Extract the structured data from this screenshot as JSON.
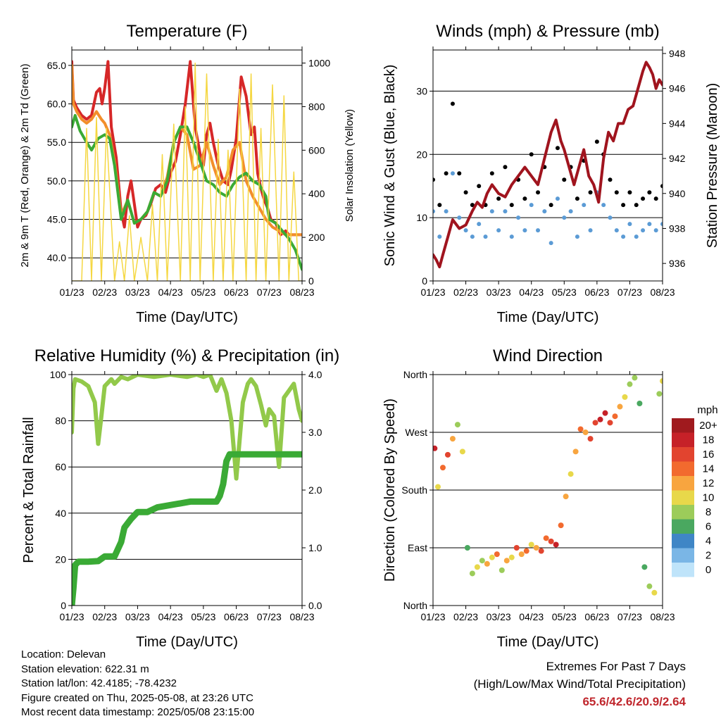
{
  "chart_data": [
    {
      "type": "line",
      "title": "Temperature (F)",
      "xlabel": "Time (Day/UTC)",
      "ylabel": "2m & 9m T (Red, Orange) & 2m Td (Green)",
      "ylabel_right": "Solar Insolation (Yellow)",
      "x_ticks": [
        "01/23",
        "02/23",
        "03/23",
        "04/23",
        "05/23",
        "06/23",
        "07/23",
        "08/23"
      ],
      "xlim": [
        0,
        7
      ],
      "ylim": [
        37,
        67
      ],
      "y_ticks": [
        "40.0",
        "45.0",
        "50.0",
        "55.0",
        "60.0",
        "65.0"
      ],
      "y2lim": [
        0,
        1060
      ],
      "y2_ticks": [
        "0",
        "200",
        "400",
        "600",
        "800",
        "1000"
      ],
      "grid": true,
      "series": [
        {
          "color": "#d62728",
          "x": [
            0,
            0.05,
            0.15,
            0.3,
            0.45,
            0.6,
            0.75,
            0.85,
            0.92,
            1.0,
            1.1,
            1.2,
            1.35,
            1.5,
            1.6,
            1.7,
            1.8,
            1.9,
            2.0,
            2.1,
            2.25,
            2.4,
            2.55,
            2.7,
            2.85,
            3.0,
            3.15,
            3.3,
            3.45,
            3.6,
            3.75,
            3.9,
            4.0,
            4.1,
            4.2,
            4.3,
            4.45,
            4.6,
            4.75,
            4.85,
            5.0,
            5.15,
            5.3,
            5.45,
            5.55,
            5.65,
            5.75,
            5.85,
            5.95,
            6.05,
            6.2,
            6.35,
            6.5,
            6.6,
            6.7,
            6.8,
            6.9,
            7.0
          ],
          "values": [
            65.5,
            60.5,
            59.5,
            58.5,
            58.0,
            58.5,
            61.5,
            62.0,
            60.0,
            62.0,
            65.5,
            57.0,
            53.0,
            46.0,
            44.0,
            48.0,
            50.0,
            47.0,
            44.0,
            45.0,
            45.5,
            47.0,
            49.0,
            49.5,
            48.5,
            51.0,
            52.5,
            56.0,
            60.0,
            65.5,
            57.0,
            53.5,
            52.0,
            56.0,
            57.5,
            55.0,
            52.0,
            50.0,
            49.5,
            51.5,
            55.5,
            63.5,
            61.0,
            56.0,
            57.0,
            51.0,
            49.0,
            47.5,
            46.5,
            45.0,
            44.5,
            43.0,
            43.5,
            43.0,
            43.0,
            43.0,
            43.0,
            43.0
          ]
        },
        {
          "color": "#f28e2b",
          "x": [
            0,
            0.05,
            0.15,
            0.3,
            0.45,
            0.6,
            0.75,
            0.9,
            1.0,
            1.15,
            1.3,
            1.5,
            1.7,
            1.9,
            2.1,
            2.3,
            2.5,
            2.7,
            2.9,
            3.1,
            3.3,
            3.5,
            3.7,
            3.9,
            4.1,
            4.3,
            4.5,
            4.7,
            4.9,
            5.1,
            5.3,
            5.5,
            5.7,
            5.9,
            6.1,
            6.3,
            6.5,
            6.7,
            7.0
          ],
          "values": [
            65.0,
            60.0,
            59.0,
            58.0,
            57.5,
            58.0,
            59.0,
            58.0,
            57.5,
            56.0,
            52.5,
            45.5,
            47.5,
            44.5,
            45.0,
            46.0,
            48.5,
            48.0,
            50.5,
            55.0,
            57.0,
            56.0,
            51.5,
            52.0,
            55.0,
            52.0,
            49.5,
            50.5,
            54.0,
            55.0,
            50.0,
            48.0,
            46.5,
            45.0,
            44.0,
            43.5,
            43.0,
            43.0,
            43.0
          ]
        },
        {
          "color": "#3aaa35",
          "x": [
            0,
            0.1,
            0.25,
            0.45,
            0.6,
            0.8,
            1.0,
            1.15,
            1.3,
            1.5,
            1.7,
            1.9,
            2.1,
            2.3,
            2.5,
            2.7,
            2.9,
            3.1,
            3.3,
            3.5,
            3.7,
            3.9,
            4.1,
            4.3,
            4.5,
            4.7,
            4.9,
            5.1,
            5.3,
            5.5,
            5.7,
            5.9,
            6.0,
            6.2,
            6.4,
            6.6,
            6.8,
            7.0
          ],
          "values": [
            57.0,
            58.5,
            56.5,
            55.0,
            54.0,
            55.5,
            56.0,
            55.5,
            52.0,
            45.0,
            47.5,
            44.5,
            45.0,
            46.0,
            48.5,
            48.0,
            50.0,
            55.0,
            57.0,
            57.0,
            55.0,
            52.5,
            50.0,
            49.5,
            48.5,
            48.0,
            49.5,
            50.5,
            51.0,
            50.0,
            49.5,
            48.0,
            45.0,
            44.5,
            43.5,
            42.5,
            41.0,
            38.5
          ]
        },
        {
          "color": "#f5d742",
          "type": "area",
          "axis": "right",
          "x": [
            0,
            0.3,
            0.45,
            0.6,
            0.75,
            0.9,
            1.05,
            1.3,
            1.45,
            1.6,
            1.75,
            1.9,
            2.1,
            2.3,
            2.45,
            2.6,
            2.75,
            2.9,
            3.1,
            3.3,
            3.45,
            3.6,
            3.75,
            3.9,
            4.1,
            4.3,
            4.45,
            4.6,
            4.75,
            4.9,
            5.1,
            5.3,
            5.45,
            5.6,
            5.75,
            5.9,
            6.1,
            6.3,
            6.45,
            6.6,
            6.75,
            6.9,
            7.0
          ],
          "values": [
            0,
            0,
            700,
            0,
            750,
            0,
            700,
            0,
            180,
            0,
            300,
            0,
            200,
            0,
            350,
            0,
            580,
            0,
            720,
            0,
            800,
            0,
            1000,
            0,
            950,
            0,
            650,
            0,
            600,
            0,
            880,
            0,
            950,
            0,
            700,
            0,
            900,
            0,
            850,
            0,
            500,
            0,
            0
          ]
        }
      ]
    },
    {
      "type": "scatter",
      "title": "Winds (mph) & Pressure (mb)",
      "xlabel": "Time (Day/UTC)",
      "ylabel": "Sonic Wind & Gust (Blue, Black)",
      "ylabel_right": "Station Pressure (Maroon)",
      "x_ticks": [
        "01/23",
        "02/23",
        "03/23",
        "04/23",
        "05/23",
        "06/23",
        "07/23",
        "08/23"
      ],
      "xlim": [
        0,
        7
      ],
      "ylim": [
        0,
        36.5
      ],
      "y_ticks": [
        "0",
        "10",
        "20",
        "30"
      ],
      "y2lim": [
        935,
        948.2
      ],
      "y2_ticks": [
        "936",
        "938",
        "940",
        "942",
        "944",
        "946",
        "948"
      ],
      "grid": true,
      "series": [
        {
          "color": "#000000",
          "x": [
            0,
            0.2,
            0.4,
            0.6,
            0.8,
            1.0,
            1.2,
            1.4,
            1.6,
            1.8,
            2.0,
            2.2,
            2.4,
            2.6,
            2.8,
            3.0,
            3.2,
            3.4,
            3.6,
            3.8,
            4.0,
            4.2,
            4.4,
            4.6,
            4.8,
            5.0,
            5.2,
            5.4,
            5.6,
            5.8,
            6.0,
            6.2,
            6.4,
            6.6,
            6.8,
            7.0
          ],
          "values": [
            16,
            12,
            17,
            28,
            17,
            14,
            12,
            15,
            12,
            17,
            13,
            18,
            12,
            16,
            13,
            20,
            14,
            18,
            12,
            21,
            16,
            18,
            13,
            19,
            14,
            22,
            20,
            16,
            14,
            12,
            14,
            12,
            13,
            14,
            13,
            15
          ]
        },
        {
          "color": "#5b9bd5",
          "x": [
            0,
            0.2,
            0.4,
            0.6,
            0.8,
            1.0,
            1.2,
            1.4,
            1.6,
            1.8,
            2.0,
            2.2,
            2.4,
            2.6,
            2.8,
            3.0,
            3.2,
            3.4,
            3.6,
            3.8,
            4.0,
            4.2,
            4.4,
            4.6,
            4.8,
            5.0,
            5.2,
            5.4,
            5.6,
            5.8,
            6.0,
            6.2,
            6.4,
            6.6,
            6.8,
            7.0
          ],
          "values": [
            11,
            7,
            11,
            17,
            10,
            8,
            7,
            9,
            7,
            11,
            8,
            11,
            7,
            10,
            8,
            12,
            8,
            11,
            6,
            13,
            10,
            11,
            7,
            12,
            8,
            14,
            12,
            10,
            8,
            7,
            9,
            7,
            8,
            9,
            8,
            9
          ]
        },
        {
          "color": "#a0141e",
          "axis": "right",
          "x": [
            0,
            0.1,
            0.2,
            0.3,
            0.45,
            0.6,
            0.8,
            1.0,
            1.2,
            1.35,
            1.5,
            1.65,
            1.8,
            2.0,
            2.2,
            2.4,
            2.6,
            2.8,
            3.0,
            3.2,
            3.4,
            3.6,
            3.75,
            3.9,
            4.0,
            4.15,
            4.3,
            4.45,
            4.6,
            4.75,
            4.9,
            5.05,
            5.2,
            5.35,
            5.5,
            5.65,
            5.8,
            5.95,
            6.1,
            6.25,
            6.4,
            6.5,
            6.6,
            6.7,
            6.8,
            6.9,
            7.0
          ],
          "values": [
            936.5,
            936.2,
            935.8,
            936.5,
            937.5,
            938.5,
            938.0,
            938.2,
            939.0,
            939.5,
            939.2,
            940.0,
            940.5,
            940.0,
            939.8,
            940.5,
            941.0,
            941.5,
            941.0,
            940.5,
            942.0,
            943.5,
            944.2,
            943.0,
            942.5,
            941.5,
            940.5,
            941.5,
            942.5,
            941.0,
            940.5,
            939.5,
            942.0,
            943.5,
            943.0,
            944.0,
            944.0,
            944.8,
            945.0,
            946.0,
            947.0,
            947.5,
            947.2,
            946.8,
            946.0,
            946.5,
            946.2
          ]
        }
      ]
    },
    {
      "type": "line",
      "title": "Relative Humidity (%) & Precipitation (in)",
      "xlabel": "Time (Day/UTC)",
      "ylabel": "Percent & Total Rainfall",
      "x_ticks": [
        "01/23",
        "02/23",
        "03/23",
        "04/23",
        "05/23",
        "06/23",
        "07/23",
        "08/23"
      ],
      "xlim": [
        0,
        7
      ],
      "ylim": [
        0,
        100
      ],
      "y_ticks": [
        "0",
        "20",
        "40",
        "60",
        "80",
        "100"
      ],
      "y2lim": [
        0,
        4.0
      ],
      "y2_ticks": [
        "0.0",
        "1.0",
        "2.0",
        "3.0",
        "4.0"
      ],
      "grid": true,
      "series": [
        {
          "color": "#92c94a",
          "x": [
            0,
            0.05,
            0.1,
            0.3,
            0.5,
            0.7,
            0.8,
            0.9,
            1.0,
            1.2,
            1.3,
            1.5,
            1.7,
            2.0,
            2.5,
            3.0,
            3.5,
            3.8,
            4.0,
            4.2,
            4.4,
            4.55,
            4.7,
            4.85,
            5.0,
            5.2,
            5.35,
            5.45,
            5.6,
            5.75,
            5.9,
            6.0,
            6.15,
            6.3,
            6.45,
            6.6,
            6.75,
            6.9,
            7.0
          ],
          "values": [
            75,
            94,
            98,
            97,
            95,
            88,
            70,
            82,
            95,
            98,
            96,
            99,
            98,
            100,
            99,
            100,
            99,
            100,
            99,
            100,
            93,
            98,
            92,
            80,
            55,
            88,
            96,
            98,
            95,
            87,
            78,
            85,
            82,
            60,
            90,
            93,
            96,
            85,
            80
          ]
        },
        {
          "color": "#3aaa35",
          "axis": "right",
          "x": [
            0,
            0.05,
            0.1,
            0.2,
            0.5,
            0.8,
            1.0,
            1.3,
            1.5,
            1.6,
            1.8,
            2.0,
            2.3,
            2.6,
            3.0,
            3.3,
            3.6,
            3.9,
            4.2,
            4.4,
            4.5,
            4.6,
            4.7,
            4.8,
            5.0,
            5.5,
            6.0,
            6.5,
            7.0
          ],
          "values": [
            0.0,
            0.3,
            0.7,
            0.76,
            0.76,
            0.77,
            0.85,
            0.85,
            1.1,
            1.35,
            1.5,
            1.62,
            1.62,
            1.7,
            1.74,
            1.77,
            1.8,
            1.8,
            1.8,
            1.8,
            1.9,
            2.1,
            2.5,
            2.62,
            2.62,
            2.62,
            2.62,
            2.62,
            2.62
          ]
        }
      ]
    },
    {
      "type": "scatter",
      "title": "Wind Direction",
      "xlabel": "Time (Day/UTC)",
      "ylabel": "Direction (Colored By Speed)",
      "x_ticks": [
        "01/23",
        "02/23",
        "03/23",
        "04/23",
        "05/23",
        "06/23",
        "07/23",
        "08/23"
      ],
      "xlim": [
        0,
        7
      ],
      "y_ticks": [
        "North",
        "East",
        "South",
        "West",
        "North"
      ],
      "ylim": [
        0,
        360
      ],
      "grid": true,
      "legend_title": "mph",
      "legend_labels": [
        "20+",
        "18",
        "16",
        "14",
        "12",
        "10",
        "8",
        "6",
        "4",
        "2",
        "0"
      ],
      "legend_colors": [
        "#a01a1e",
        "#c62128",
        "#e2442f",
        "#f26a2e",
        "#f8a53f",
        "#e8d84a",
        "#9ccc5a",
        "#4aa860",
        "#3f86c6",
        "#7ab6e6",
        "#bfe4fa"
      ],
      "x": [
        0.05,
        0.15,
        0.3,
        0.45,
        0.6,
        0.75,
        0.9,
        1.05,
        1.2,
        1.35,
        1.5,
        1.65,
        1.8,
        1.95,
        2.1,
        2.25,
        2.4,
        2.55,
        2.7,
        2.85,
        3.0,
        3.15,
        3.3,
        3.45,
        3.6,
        3.75,
        3.9,
        4.05,
        4.2,
        4.35,
        4.5,
        4.65,
        4.8,
        4.95,
        5.1,
        5.25,
        5.4,
        5.55,
        5.7,
        5.85,
        6.0,
        6.15,
        6.3,
        6.45,
        6.6,
        6.75,
        6.9,
        7.0
      ],
      "values": [
        245,
        185,
        215,
        235,
        260,
        282,
        240,
        90,
        50,
        60,
        70,
        65,
        75,
        80,
        55,
        70,
        75,
        90,
        80,
        85,
        95,
        90,
        85,
        105,
        100,
        95,
        125,
        170,
        205,
        240,
        275,
        270,
        260,
        285,
        290,
        300,
        285,
        295,
        310,
        325,
        345,
        355,
        315,
        60,
        30,
        20,
        330,
        350
      ],
      "speeds": [
        18,
        10,
        14,
        16,
        12,
        8,
        10,
        6,
        8,
        10,
        8,
        12,
        10,
        14,
        8,
        12,
        10,
        16,
        12,
        14,
        10,
        12,
        16,
        14,
        16,
        18,
        14,
        12,
        10,
        12,
        14,
        12,
        16,
        16,
        18,
        18,
        16,
        14,
        12,
        10,
        8,
        8,
        6,
        6,
        8,
        10,
        8,
        10
      ]
    }
  ],
  "info": {
    "location": "Location: Delevan",
    "elevation": "Station elevation: 622.31 m",
    "latlon": "Station lat/lon: 42.4185; -78.4232",
    "created": "Figure created on Thu, 2025-05-08, at 23:26 UTC",
    "timestamp": "Most recent data timestamp: 2025/05/08 23:15:00"
  },
  "extremes": {
    "title": "Extremes For Past 7 Days",
    "subtitle": "(High/Low/Max Wind/Total Precipitation)",
    "values": "65.6/42.6/20.9/2.64"
  }
}
